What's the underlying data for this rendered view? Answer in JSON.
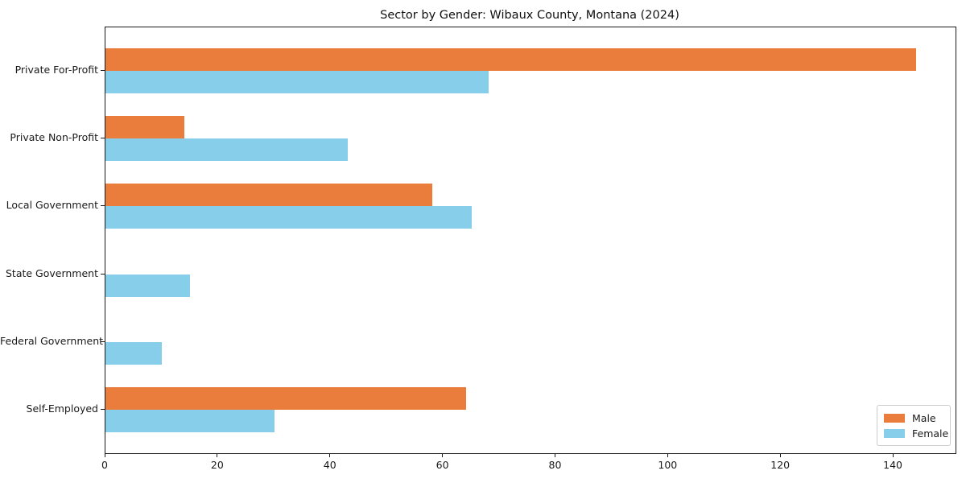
{
  "chart_data": {
    "type": "bar",
    "orientation": "horizontal",
    "title": "Sector by Gender: Wibaux County, Montana (2024)",
    "categories": [
      "Private For-Profit",
      "Private Non-Profit",
      "Local Government",
      "State Government",
      "Federal Government",
      "Self-Employed"
    ],
    "series": [
      {
        "name": "Male",
        "color": "#EB7D3C",
        "values": [
          144,
          14,
          58,
          0,
          0,
          64
        ]
      },
      {
        "name": "Female",
        "color": "#87CEEB",
        "values": [
          68,
          43,
          65,
          15,
          10,
          30
        ]
      }
    ],
    "xlabel": "",
    "ylabel": "",
    "xlim": [
      0,
      151
    ],
    "xticks": [
      0,
      20,
      40,
      60,
      80,
      100,
      120,
      140
    ],
    "grid": false,
    "legend_position": "lower right"
  }
}
